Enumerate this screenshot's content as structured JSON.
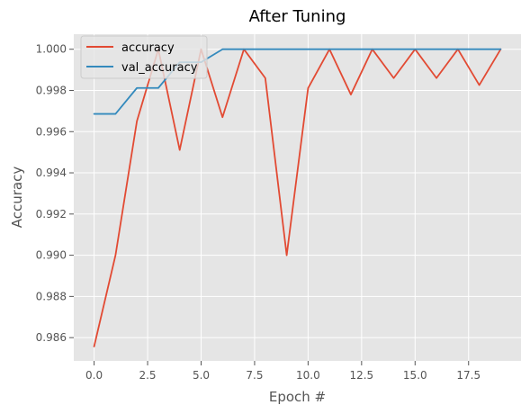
{
  "chart_data": {
    "type": "line",
    "title": "After Tuning",
    "xlabel": "Epoch #",
    "ylabel": "Accuracy",
    "xlim": [
      -0.95,
      19.95
    ],
    "ylim": [
      0.98487,
      1.00073
    ],
    "xticks": [
      0,
      2.5,
      5,
      7.5,
      10,
      12.5,
      15,
      17.5
    ],
    "xtick_labels": [
      "0.0",
      "2.5",
      "5.0",
      "7.5",
      "10.0",
      "12.5",
      "15.0",
      "17.5"
    ],
    "yticks": [
      0.986,
      0.988,
      0.99,
      0.992,
      0.994,
      0.996,
      0.998,
      1.0
    ],
    "ytick_labels": [
      "0.986",
      "0.988",
      "0.990",
      "0.992",
      "0.994",
      "0.996",
      "0.998",
      "1.000"
    ],
    "grid": true,
    "legend_position": "top-left",
    "x": [
      0,
      1,
      2,
      3,
      4,
      5,
      6,
      7,
      8,
      9,
      10,
      11,
      12,
      13,
      14,
      15,
      16,
      17,
      18,
      19
    ],
    "series": [
      {
        "name": "accuracy",
        "color": "#E24A33",
        "values": [
          0.98557,
          0.99,
          0.99651,
          1.0,
          0.99511,
          1.0,
          0.9967,
          1.0,
          0.9986,
          0.99,
          0.99811,
          1.0,
          0.9978,
          1.0,
          0.9986,
          1.0,
          0.9986,
          1.0,
          0.99826,
          1.0
        ]
      },
      {
        "name": "val_accuracy",
        "color": "#348ABD",
        "values": [
          0.99686,
          0.99686,
          0.99812,
          0.99812,
          0.99937,
          0.99937,
          1.0,
          1.0,
          1.0,
          1.0,
          1.0,
          1.0,
          1.0,
          1.0,
          1.0,
          1.0,
          1.0,
          1.0,
          1.0,
          1.0
        ]
      }
    ],
    "plot_background": "#E5E5E5",
    "grid_color": "#FFFFFF"
  }
}
